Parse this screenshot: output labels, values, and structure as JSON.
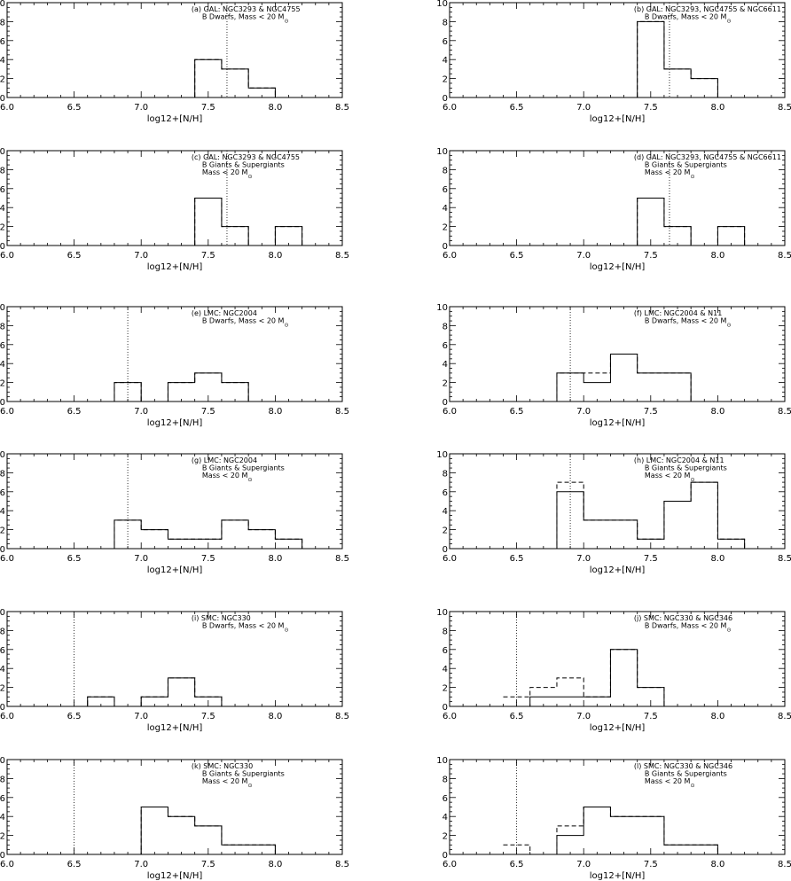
{
  "figure": {
    "xlabel": "log12+[N/H]",
    "xlim": [
      6.0,
      8.5
    ],
    "ylim": [
      0,
      10
    ],
    "xticks": [
      "6.0",
      "6.5",
      "7.0",
      "7.5",
      "8.0",
      "8.5"
    ],
    "yticks": [
      "0",
      "2",
      "4",
      "6",
      "8",
      "10"
    ],
    "mass_suffix": "< 20 M",
    "sun_symbol": "⊙"
  },
  "chart_data": [
    {
      "type": "histogram",
      "id": "a",
      "annotation_lines": [
        "(a) GAL: NGC3293 & NGC4755",
        "B Dwarfs, Mass"
      ],
      "mass_on_last_line": true,
      "ref_line_x": 7.64,
      "bin_edges": [
        6.4,
        6.6,
        6.8,
        7.0,
        7.2,
        7.4,
        7.6,
        7.8,
        8.0,
        8.2,
        8.4
      ],
      "solid": [
        0,
        0,
        0,
        0,
        0,
        4,
        3,
        1,
        0,
        0
      ],
      "dashed": [
        0,
        0,
        0,
        0,
        0,
        4,
        3,
        1,
        0,
        0
      ],
      "xlabel": "log12+[N/H]",
      "xlim": [
        6.0,
        8.5
      ],
      "ylim": [
        0,
        10
      ]
    },
    {
      "type": "histogram",
      "id": "b",
      "annotation_lines": [
        "(b) GAL: NGC3293, NGC4755 & NGC6611",
        "B Dwarfs, Mass"
      ],
      "mass_on_last_line": true,
      "ref_line_x": 7.64,
      "bin_edges": [
        6.4,
        6.6,
        6.8,
        7.0,
        7.2,
        7.4,
        7.6,
        7.8,
        8.0,
        8.2,
        8.4
      ],
      "solid": [
        0,
        0,
        0,
        0,
        0,
        8,
        3,
        2,
        0,
        0
      ],
      "dashed": [
        0,
        0,
        0,
        0,
        0,
        8,
        3,
        2,
        0,
        0
      ],
      "xlabel": "log12+[N/H]",
      "xlim": [
        6.0,
        8.5
      ],
      "ylim": [
        0,
        10
      ]
    },
    {
      "type": "histogram",
      "id": "c",
      "annotation_lines": [
        "(c) GAL: NGC3293 & NGC4755",
        "B Giants & Supergiants",
        "Mass"
      ],
      "mass_on_last_line": true,
      "ref_line_x": 7.64,
      "bin_edges": [
        6.4,
        6.6,
        6.8,
        7.0,
        7.2,
        7.4,
        7.6,
        7.8,
        8.0,
        8.2,
        8.4
      ],
      "solid": [
        0,
        0,
        0,
        0,
        0,
        5,
        2,
        0,
        2,
        0
      ],
      "dashed": [
        0,
        0,
        0,
        0,
        0,
        5,
        2,
        0,
        2,
        0
      ],
      "xlabel": "log12+[N/H]",
      "xlim": [
        6.0,
        8.5
      ],
      "ylim": [
        0,
        10
      ]
    },
    {
      "type": "histogram",
      "id": "d",
      "annotation_lines": [
        "(d) GAL: NGC3293, NGC4755 & NGC6611",
        "B Giants & Supergiants",
        "Mass"
      ],
      "mass_on_last_line": true,
      "ref_line_x": 7.64,
      "bin_edges": [
        6.4,
        6.6,
        6.8,
        7.0,
        7.2,
        7.4,
        7.6,
        7.8,
        8.0,
        8.2,
        8.4
      ],
      "solid": [
        0,
        0,
        0,
        0,
        0,
        5,
        2,
        0,
        2,
        0
      ],
      "dashed": [
        0,
        0,
        0,
        0,
        0,
        5,
        2,
        0,
        2,
        0
      ],
      "xlabel": "log12+[N/H]",
      "xlim": [
        6.0,
        8.5
      ],
      "ylim": [
        0,
        10
      ]
    },
    {
      "type": "histogram",
      "id": "e",
      "annotation_lines": [
        "(e) LMC: NGC2004",
        "B Dwarfs, Mass"
      ],
      "mass_on_last_line": true,
      "ref_line_x": 6.9,
      "bin_edges": [
        6.4,
        6.6,
        6.8,
        7.0,
        7.2,
        7.4,
        7.6,
        7.8,
        8.0,
        8.2,
        8.4
      ],
      "solid": [
        0,
        0,
        2,
        0,
        2,
        3,
        2,
        0,
        0,
        0
      ],
      "dashed": [
        0,
        0,
        2,
        0,
        2,
        3,
        2,
        0,
        0,
        0
      ],
      "xlabel": "log12+[N/H]",
      "xlim": [
        6.0,
        8.5
      ],
      "ylim": [
        0,
        10
      ]
    },
    {
      "type": "histogram",
      "id": "f",
      "annotation_lines": [
        "(f) LMC: NGC2004 & N11",
        "B Dwarfs, Mass"
      ],
      "mass_on_last_line": true,
      "ref_line_x": 6.9,
      "bin_edges": [
        6.4,
        6.6,
        6.8,
        7.0,
        7.2,
        7.4,
        7.6,
        7.8,
        8.0,
        8.2,
        8.4
      ],
      "solid": [
        0,
        0,
        3,
        2,
        5,
        3,
        3,
        0,
        0,
        0
      ],
      "dashed": [
        0,
        0,
        3,
        3,
        5,
        3,
        3,
        0,
        0,
        0
      ],
      "xlabel": "log12+[N/H]",
      "xlim": [
        6.0,
        8.5
      ],
      "ylim": [
        0,
        10
      ]
    },
    {
      "type": "histogram",
      "id": "g",
      "annotation_lines": [
        "(g) LMC: NGC2004",
        "B Giants & Supergiants",
        "Mass"
      ],
      "mass_on_last_line": true,
      "ref_line_x": 6.9,
      "bin_edges": [
        6.4,
        6.6,
        6.8,
        7.0,
        7.2,
        7.4,
        7.6,
        7.8,
        8.0,
        8.2,
        8.4
      ],
      "solid": [
        0,
        0,
        3,
        2,
        1,
        1,
        3,
        2,
        1,
        0
      ],
      "dashed": [
        0,
        0,
        3,
        2,
        1,
        1,
        3,
        2,
        1,
        0
      ],
      "xlabel": "log12+[N/H]",
      "xlim": [
        6.0,
        8.5
      ],
      "ylim": [
        0,
        10
      ]
    },
    {
      "type": "histogram",
      "id": "h",
      "annotation_lines": [
        "(h) LMC: NGC2004 & N11",
        "B Giants & Supergiants",
        "Mass"
      ],
      "mass_on_last_line": true,
      "ref_line_x": 6.9,
      "bin_edges": [
        6.4,
        6.6,
        6.8,
        7.0,
        7.2,
        7.4,
        7.6,
        7.8,
        8.0,
        8.2,
        8.4
      ],
      "solid": [
        0,
        0,
        6,
        3,
        3,
        1,
        5,
        7,
        1,
        0
      ],
      "dashed": [
        0,
        0,
        7,
        3,
        3,
        1,
        5,
        7,
        1,
        0
      ],
      "xlabel": "log12+[N/H]",
      "xlim": [
        6.0,
        8.5
      ],
      "ylim": [
        0,
        10
      ]
    },
    {
      "type": "histogram",
      "id": "i",
      "annotation_lines": [
        "(i) SMC: NGC330",
        "B Dwarfs, Mass"
      ],
      "mass_on_last_line": true,
      "ref_line_x": 6.5,
      "bin_edges": [
        6.4,
        6.6,
        6.8,
        7.0,
        7.2,
        7.4,
        7.6,
        7.8,
        8.0,
        8.2,
        8.4
      ],
      "solid": [
        0,
        1,
        0,
        1,
        3,
        1,
        0,
        0,
        0,
        0
      ],
      "dashed": [
        0,
        1,
        0,
        1,
        3,
        1,
        0,
        0,
        0,
        0
      ],
      "xlabel": "log12+[N/H]",
      "xlim": [
        6.0,
        8.5
      ],
      "ylim": [
        0,
        10
      ]
    },
    {
      "type": "histogram",
      "id": "j",
      "annotation_lines": [
        "(j) SMC: NGC330 & NGC346",
        "B Dwarfs, Mass"
      ],
      "mass_on_last_line": true,
      "ref_line_x": 6.5,
      "bin_edges": [
        6.4,
        6.6,
        6.8,
        7.0,
        7.2,
        7.4,
        7.6,
        7.8,
        8.0,
        8.2,
        8.4
      ],
      "solid": [
        0,
        1,
        1,
        1,
        6,
        2,
        0,
        0,
        0,
        0
      ],
      "dashed": [
        1,
        2,
        3,
        1,
        6,
        2,
        0,
        0,
        0,
        0
      ],
      "xlabel": "log12+[N/H]",
      "xlim": [
        6.0,
        8.5
      ],
      "ylim": [
        0,
        10
      ]
    },
    {
      "type": "histogram",
      "id": "k",
      "annotation_lines": [
        "(k) SMC: NGC330",
        "B Giants & Supergiants",
        "Mass"
      ],
      "mass_on_last_line": true,
      "ref_line_x": 6.5,
      "bin_edges": [
        6.4,
        6.6,
        6.8,
        7.0,
        7.2,
        7.4,
        7.6,
        7.8,
        8.0,
        8.2,
        8.4
      ],
      "solid": [
        0,
        0,
        0,
        5,
        4,
        3,
        1,
        1,
        0,
        0
      ],
      "dashed": [
        0,
        0,
        0,
        5,
        4,
        3,
        1,
        1,
        0,
        0
      ],
      "xlabel": "log12+[N/H]",
      "xlim": [
        6.0,
        8.5
      ],
      "ylim": [
        0,
        10
      ]
    },
    {
      "type": "histogram",
      "id": "l",
      "annotation_lines": [
        "(l) SMC: NGC330 & NGC346",
        "B Giants & Supergiants",
        "Mass"
      ],
      "mass_on_last_line": true,
      "ref_line_x": 6.5,
      "bin_edges": [
        6.4,
        6.6,
        6.8,
        7.0,
        7.2,
        7.4,
        7.6,
        7.8,
        8.0,
        8.2,
        8.4
      ],
      "solid": [
        0,
        0,
        2,
        5,
        4,
        4,
        1,
        1,
        0,
        0
      ],
      "dashed": [
        1,
        0,
        3,
        5,
        4,
        4,
        1,
        1,
        0,
        0
      ],
      "xlabel": "log12+[N/H]",
      "xlim": [
        6.0,
        8.5
      ],
      "ylim": [
        0,
        10
      ]
    }
  ]
}
